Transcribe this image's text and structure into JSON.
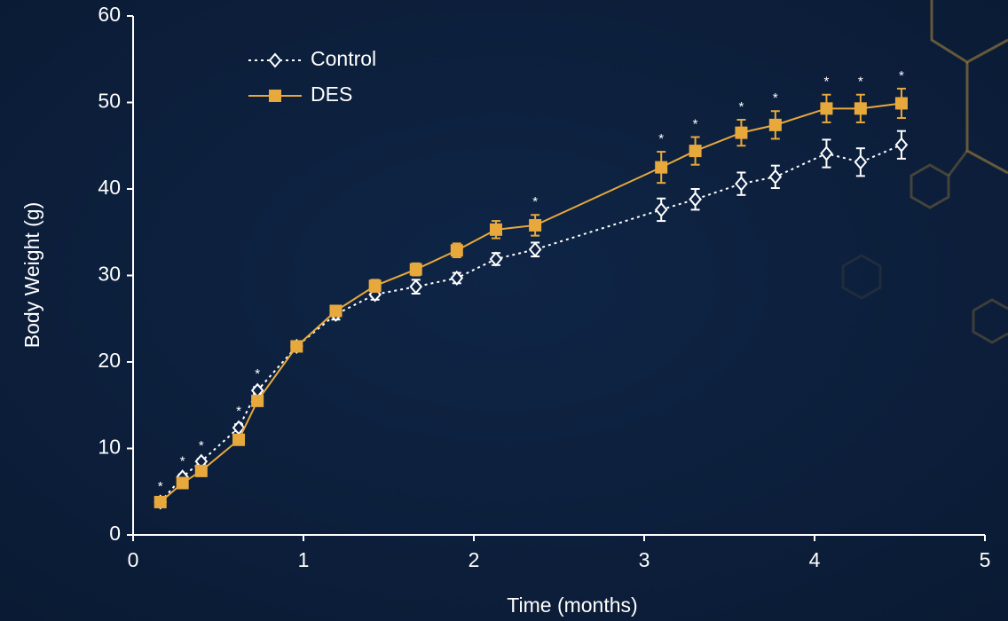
{
  "chart_data": {
    "type": "line",
    "x_label": "Time (months)",
    "y_label": "Body Weight (g)",
    "xlim": [
      0,
      5
    ],
    "xticks": [
      0,
      1,
      2,
      3,
      4,
      5
    ],
    "ylim": [
      0,
      60
    ],
    "yticks": [
      0,
      10,
      20,
      30,
      40,
      50,
      60
    ],
    "grid": false,
    "legend": "upper-left",
    "x": [
      0.16,
      0.29,
      0.4,
      0.62,
      0.73,
      0.96,
      1.19,
      1.42,
      1.66,
      1.9,
      2.13,
      2.36,
      3.1,
      3.3,
      3.57,
      3.77,
      4.07,
      4.27,
      4.51
    ],
    "series": [
      {
        "name": "Control",
        "color": "#ffffff",
        "marker": "diamond",
        "dash": "dotted",
        "values": [
          3.8,
          6.7,
          8.5,
          12.4,
          16.7,
          21.8,
          25.5,
          27.8,
          28.7,
          29.7,
          31.9,
          33.0,
          37.6,
          38.8,
          40.6,
          41.4,
          44.1,
          43.1,
          45.1
        ],
        "errors": [
          0.3,
          0.3,
          0.3,
          0.4,
          0.4,
          0.5,
          0.6,
          0.6,
          0.8,
          0.6,
          0.7,
          0.8,
          1.3,
          1.2,
          1.3,
          1.3,
          1.6,
          1.6,
          1.6
        ]
      },
      {
        "name": "DES",
        "color": "#e8a93c",
        "marker": "square",
        "dash": "solid",
        "values": [
          3.8,
          6.0,
          7.4,
          11.0,
          15.5,
          21.8,
          25.9,
          28.8,
          30.7,
          32.9,
          35.3,
          35.8,
          42.5,
          44.4,
          46.5,
          47.4,
          49.3,
          49.3,
          49.9
        ],
        "errors": [
          0.3,
          0.3,
          0.3,
          0.4,
          0.5,
          0.5,
          0.6,
          0.7,
          0.7,
          0.8,
          1.0,
          1.2,
          1.8,
          1.6,
          1.5,
          1.6,
          1.6,
          1.6,
          1.7
        ]
      }
    ],
    "annotations": [
      {
        "text": "*",
        "x": 0.16
      },
      {
        "text": "*",
        "x": 0.29
      },
      {
        "text": "*",
        "x": 0.4
      },
      {
        "text": "*",
        "x": 0.62
      },
      {
        "text": "*",
        "x": 0.73
      },
      {
        "text": "*",
        "x": 2.36
      },
      {
        "text": "*",
        "x": 3.1
      },
      {
        "text": "*",
        "x": 3.3
      },
      {
        "text": "*",
        "x": 3.57
      },
      {
        "text": "*",
        "x": 3.77
      },
      {
        "text": "*",
        "x": 4.07
      },
      {
        "text": "*",
        "x": 4.27
      },
      {
        "text": "*",
        "x": 4.51
      }
    ]
  }
}
